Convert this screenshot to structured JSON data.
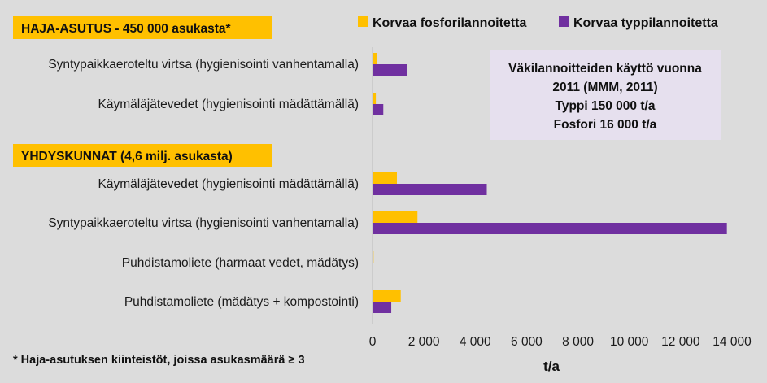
{
  "chart_data": {
    "type": "bar",
    "orientation": "horizontal",
    "xlabel": "t/a",
    "xlim": [
      0,
      14000
    ],
    "x_ticks": [
      "0",
      "2 000",
      "4 000",
      "6 000",
      "8 000",
      "10 000",
      "12 000",
      "14 000"
    ],
    "x_tick_values": [
      0,
      2000,
      4000,
      6000,
      8000,
      10000,
      12000,
      14000
    ],
    "legend_position": "top-right",
    "sections": [
      {
        "label": "HAJA-ASUTUS - 450 000 asukasta*",
        "highlight_color": "#ffc000"
      },
      {
        "label": "YHDYSKUNNAT (4,6 milj. asukasta)",
        "highlight_color": "#ffc000"
      }
    ],
    "categories": [
      "Syntypaikkaeroteltu virtsa (hygienisointi vanhentamalla)",
      "Käymäläjätevedet (hygienisointi mädättämällä)",
      "Käymäläjätevedet (hygienisointi mädättämällä)",
      "Syntypaikkaeroteltu virtsa (hygienisointi vanhentamalla)",
      "Puhdistamoliete (harmaat vedet, mädätys)",
      "Puhdistamoliete (mädätys + kompostointi)"
    ],
    "category_section": [
      0,
      0,
      1,
      1,
      1,
      1
    ],
    "series": [
      {
        "name": "Korvaa fosforilannoitetta",
        "color": "#ffc000",
        "values": [
          180,
          130,
          950,
          1750,
          40,
          1100
        ]
      },
      {
        "name": "Korvaa typpilannoitetta",
        "color": "#7030a0",
        "values": [
          1350,
          420,
          4450,
          13800,
          0,
          730
        ]
      }
    ],
    "info_box": {
      "lines": [
        "Väkilannoitteiden käyttö vuonna",
        "2011 (MMM, 2011)",
        "Typpi 150 000 t/a",
        "Fosfori 16 000 t/a"
      ],
      "color": "#e6e0ee"
    },
    "footnote": "* Haja-asutuksen kiinteistöt, joissa asukasmäärä ≥ 3"
  }
}
